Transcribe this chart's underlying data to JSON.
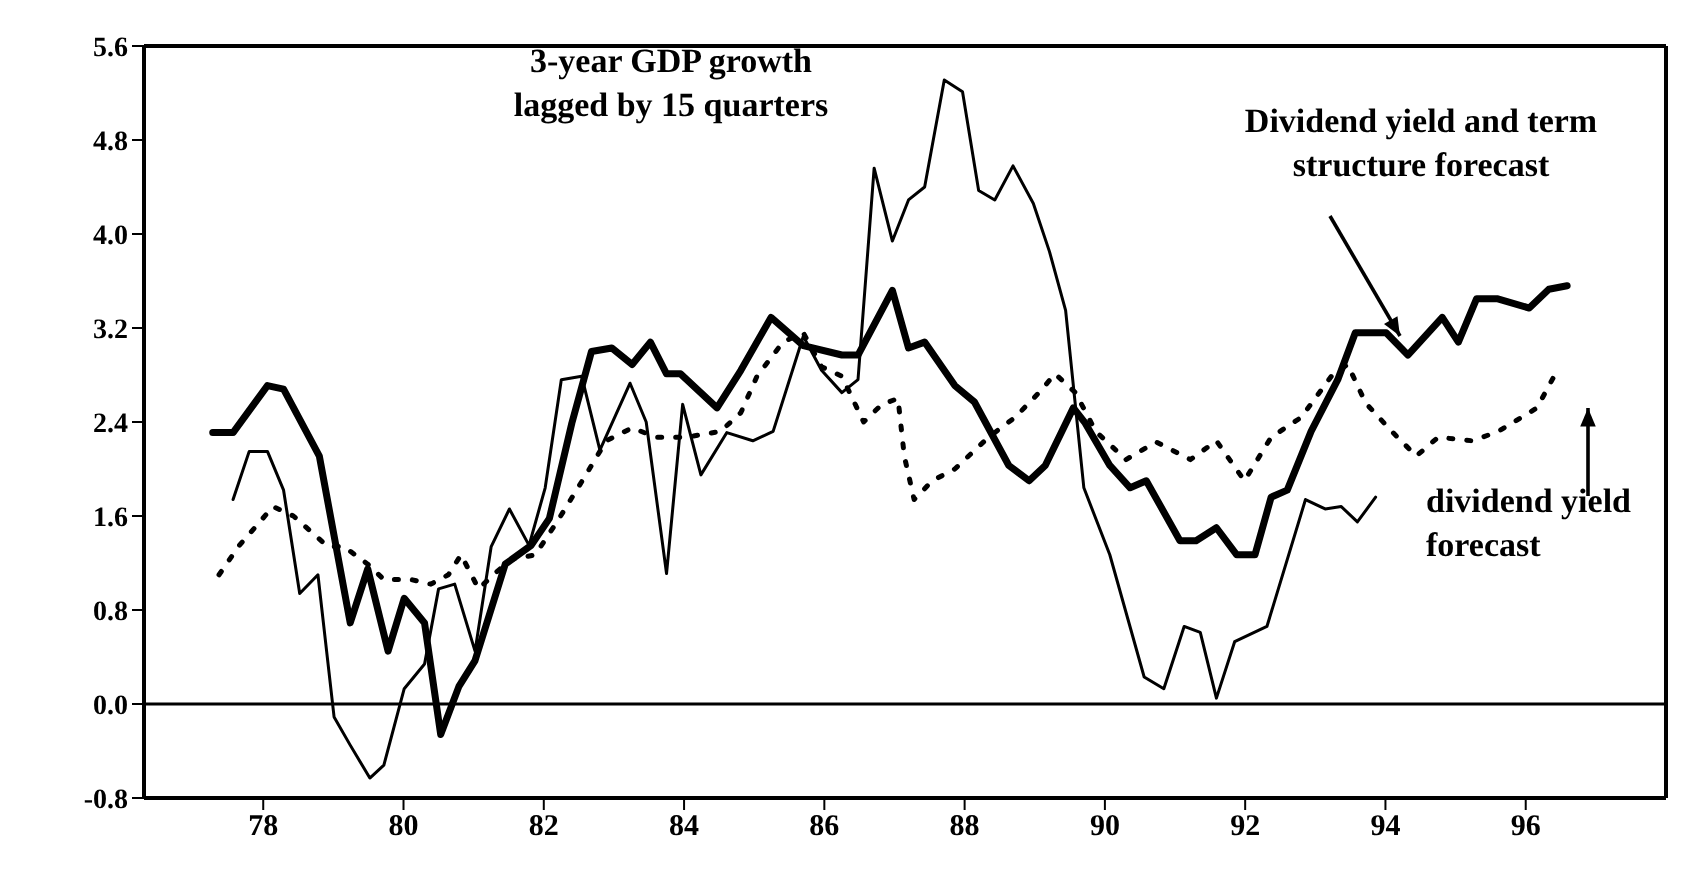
{
  "chart_data": {
    "type": "line",
    "xlim": [
      76.3,
      98
    ],
    "xticks": [
      78,
      80,
      82,
      84,
      86,
      88,
      90,
      92,
      94,
      96
    ],
    "ylim": [
      -0.8,
      5.6
    ],
    "yticks": [
      {
        "value": -0.8,
        "label": "-0.8"
      },
      {
        "value": 0,
        "label": "0.0"
      },
      {
        "value": 0.8,
        "label": "0.8"
      },
      {
        "value": 1.6,
        "label": "1.6"
      },
      {
        "value": 2.4,
        "label": "2.4"
      },
      {
        "value": 3.2,
        "label": "3.2"
      },
      {
        "value": 4,
        "label": "4.0"
      },
      {
        "value": 4.8,
        "label": "4.8"
      },
      {
        "value": 5.6,
        "label": "5.6"
      }
    ],
    "legend": false,
    "marker": "none",
    "ref_lines": [
      {
        "axis": "y",
        "value": 0,
        "color": "#000000"
      }
    ],
    "series": [
      {
        "name": "3-year GDP growth lagged by 15 quarters",
        "color": "#000000",
        "line_style": "solid",
        "x": [
          77.57,
          77.8,
          78.06,
          78.29,
          78.52,
          78.78,
          79.01,
          79.24,
          79.52,
          79.72,
          80.01,
          80.3,
          80.5,
          80.73,
          81.02,
          81.25,
          81.51,
          81.79,
          82.02,
          82.25,
          82.54,
          82.8,
          83.23,
          83.46,
          83.75,
          83.98,
          84.24,
          84.61,
          84.98,
          85.27,
          85.7,
          85.96,
          86.25,
          86.48,
          86.71,
          86.97,
          87.2,
          87.43,
          87.71,
          87.97,
          88.2,
          88.43,
          88.69,
          88.98,
          89.21,
          89.44,
          89.7,
          90.07,
          90.56,
          90.84,
          91.13,
          91.36,
          91.59,
          91.85,
          92.31,
          92.86,
          93.14,
          93.37,
          93.6,
          93.86
        ],
        "values": [
          1.74,
          2.15,
          2.15,
          1.82,
          0.94,
          1.1,
          -0.11,
          -0.35,
          -0.63,
          -0.52,
          0.13,
          0.34,
          0.98,
          1.02,
          0.45,
          1.34,
          1.66,
          1.35,
          1.84,
          2.76,
          2.79,
          2.16,
          2.73,
          2.4,
          1.11,
          2.55,
          1.95,
          2.31,
          2.24,
          2.32,
          3.13,
          2.84,
          2.65,
          2.76,
          4.56,
          3.94,
          4.29,
          4.4,
          5.31,
          5.21,
          4.37,
          4.29,
          4.58,
          4.26,
          3.85,
          3.35,
          1.84,
          1.27,
          0.23,
          0.13,
          0.66,
          0.61,
          0.05,
          0.53,
          0.66,
          1.74,
          1.66,
          1.68,
          1.55,
          1.76
        ]
      },
      {
        "name": "Dividend yield and term structure forecast",
        "color": "#000000",
        "line_style": "solid",
        "x": [
          77.28,
          77.57,
          78.06,
          78.29,
          78.8,
          79.24,
          79.49,
          79.78,
          80.01,
          80.3,
          80.53,
          80.79,
          81.02,
          81.45,
          81.82,
          82.08,
          82.4,
          82.68,
          82.97,
          83.26,
          83.52,
          83.75,
          83.95,
          84.47,
          84.81,
          85.24,
          85.7,
          86.25,
          86.48,
          86.97,
          87.2,
          87.43,
          87.86,
          88.14,
          88.63,
          88.92,
          89.15,
          89.55,
          89.72,
          90.07,
          90.36,
          90.59,
          91.07,
          91.3,
          91.59,
          91.88,
          92.14,
          92.37,
          92.6,
          92.94,
          93.32,
          93.57,
          94.01,
          94.32,
          94.81,
          95.04,
          95.3,
          95.59,
          96.05,
          96.33,
          96.59
        ],
        "values": [
          2.31,
          2.31,
          2.71,
          2.68,
          2.11,
          0.69,
          1.15,
          0.45,
          0.9,
          0.69,
          -0.26,
          0.15,
          0.37,
          1.19,
          1.35,
          1.58,
          2.39,
          3.0,
          3.03,
          2.89,
          3.08,
          2.81,
          2.81,
          2.52,
          2.84,
          3.29,
          3.05,
          2.97,
          2.97,
          3.52,
          3.03,
          3.08,
          2.71,
          2.57,
          2.03,
          1.9,
          2.03,
          2.52,
          2.39,
          2.03,
          1.84,
          1.9,
          1.39,
          1.39,
          1.5,
          1.27,
          1.27,
          1.76,
          1.82,
          2.32,
          2.76,
          3.16,
          3.16,
          2.97,
          3.29,
          3.08,
          3.45,
          3.45,
          3.37,
          3.53,
          3.56
        ]
      },
      {
        "name": "dividend yield forecast",
        "color": "#000000",
        "line_style": "dotted",
        "x": [
          77.37,
          77.66,
          78.14,
          78.43,
          78.92,
          79.15,
          79.49,
          79.72,
          80.1,
          80.39,
          80.64,
          80.82,
          81.07,
          81.3,
          81.53,
          81.88,
          82.22,
          82.6,
          82.89,
          83.26,
          83.6,
          84.03,
          84.52,
          84.81,
          85.04,
          85.41,
          85.7,
          85.96,
          86.25,
          86.56,
          86.82,
          87.05,
          87.14,
          87.28,
          87.54,
          87.86,
          88.34,
          88.72,
          89.06,
          89.29,
          89.58,
          89.87,
          90.3,
          90.73,
          91.22,
          91.59,
          91.99,
          92.37,
          92.8,
          93.23,
          93.46,
          93.72,
          94.09,
          94.44,
          94.75,
          95.24,
          95.61,
          96.16,
          96.45
        ],
        "values": [
          1.1,
          1.35,
          1.68,
          1.6,
          1.34,
          1.34,
          1.19,
          1.06,
          1.06,
          1.02,
          1.1,
          1.27,
          0.98,
          1.11,
          1.23,
          1.27,
          1.58,
          1.95,
          2.24,
          2.35,
          2.27,
          2.27,
          2.32,
          2.48,
          2.79,
          3.08,
          3.16,
          2.87,
          2.79,
          2.4,
          2.55,
          2.6,
          2.11,
          1.74,
          1.9,
          2.0,
          2.27,
          2.44,
          2.65,
          2.81,
          2.65,
          2.32,
          2.08,
          2.23,
          2.08,
          2.24,
          1.9,
          2.27,
          2.44,
          2.79,
          2.89,
          2.56,
          2.32,
          2.11,
          2.27,
          2.24,
          2.32,
          2.52,
          2.84
        ]
      }
    ]
  }
}
